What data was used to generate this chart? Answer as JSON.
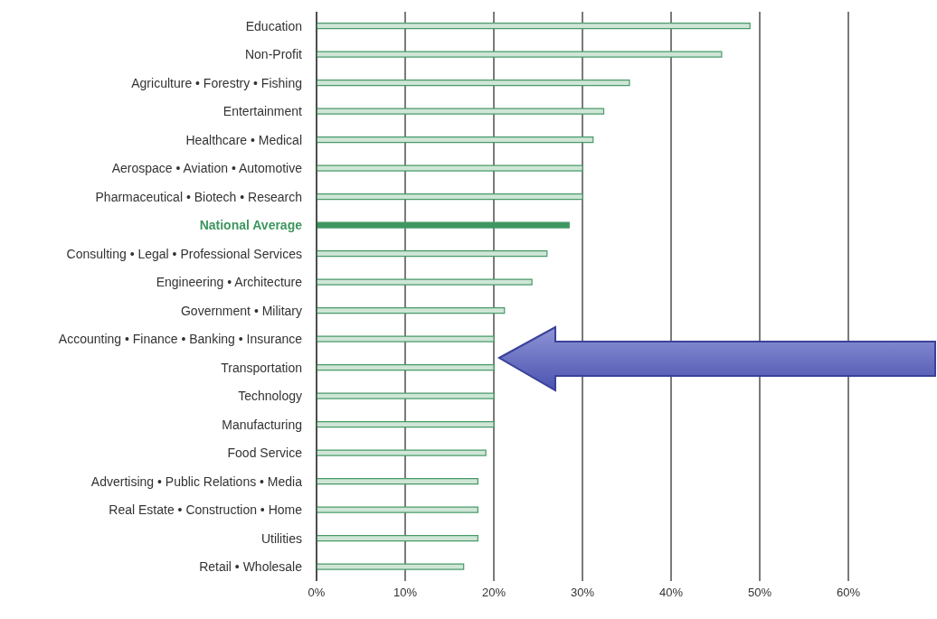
{
  "chart_data": {
    "type": "bar",
    "orientation": "horizontal",
    "categories": [
      "Education",
      "Non-Profit",
      "Agriculture • Forestry • Fishing",
      "Entertainment",
      "Healthcare • Medical",
      "Aerospace • Aviation • Automotive",
      "Pharmaceutical • Biotech • Research",
      "National Average",
      "Consulting • Legal • Professional Services",
      "Engineering • Architecture",
      "Government • Military",
      "Accounting • Finance • Banking • Insurance",
      "Transportation",
      "Technology",
      "Manufacturing",
      "Food Service",
      "Advertising • Public Relations • Media",
      "Real Estate • Construction • Home",
      "Utilities",
      "Retail • Wholesale"
    ],
    "values": [
      48.9,
      45.7,
      35.3,
      32.4,
      31.2,
      30,
      30,
      28.5,
      26,
      24.3,
      21.2,
      20,
      20,
      20,
      20,
      19.1,
      18.2,
      18.2,
      18.2,
      16.6
    ],
    "colors": [
      "#cfe6d6",
      "#cfe6d6",
      "#cfe6d6",
      "#cfe6d6",
      "#cfe6d6",
      "#cfe6d6",
      "#cfe6d6",
      "#3e9660",
      "#cfe6d6",
      "#cfe6d6",
      "#cfe6d6",
      "#cfe6d6",
      "#cfe6d6",
      "#cfe6d6",
      "#cfe6d6",
      "#cfe6d6",
      "#cfe6d6",
      "#cfe6d6",
      "#cfe6d6",
      "#cfe6d6"
    ],
    "xlim": [
      0,
      60
    ],
    "xticks": [
      {
        "value": 0,
        "label": "0%"
      },
      {
        "value": 10,
        "label": "10%"
      },
      {
        "value": 20,
        "label": "20%"
      },
      {
        "value": 30,
        "label": "30%"
      },
      {
        "value": 40,
        "label": "40%"
      },
      {
        "value": 50,
        "label": "50%"
      },
      {
        "value": 60,
        "label": "60%"
      }
    ],
    "grid": "x"
  }
}
